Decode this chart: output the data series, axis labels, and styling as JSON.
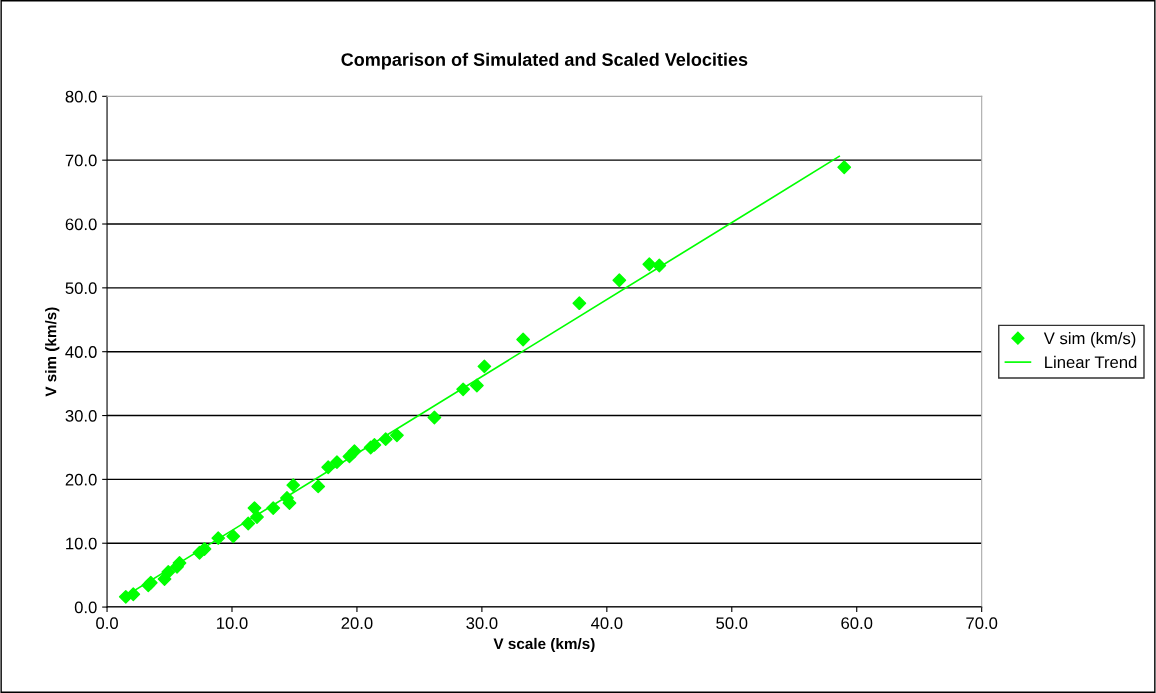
{
  "chart_data": {
    "type": "scatter",
    "title": "Comparison of Simulated and Scaled Velocities",
    "xlabel": "V scale (km/s)",
    "ylabel": "V sim (km/s)",
    "xlim": [
      0,
      70
    ],
    "xticks": [
      {
        "value": 0,
        "label": "0.0"
      },
      {
        "value": 10,
        "label": "10.0"
      },
      {
        "value": 20,
        "label": "20.0"
      },
      {
        "value": 30,
        "label": "30.0"
      },
      {
        "value": 40,
        "label": "40.0"
      },
      {
        "value": 50,
        "label": "50.0"
      },
      {
        "value": 60,
        "label": "60.0"
      },
      {
        "value": 70,
        "label": "70.0"
      }
    ],
    "ylim": [
      0,
      80
    ],
    "yticks": [
      {
        "value": 0,
        "label": "0.0"
      },
      {
        "value": 10,
        "label": "10.0"
      },
      {
        "value": 20,
        "label": "20.0"
      },
      {
        "value": 30,
        "label": "30.0"
      },
      {
        "value": 40,
        "label": "40.0"
      },
      {
        "value": 50,
        "label": "50.0"
      },
      {
        "value": 60,
        "label": "60.0"
      },
      {
        "value": 70,
        "label": "70.0"
      },
      {
        "value": 80,
        "label": "80.0"
      }
    ],
    "grid": "y",
    "legend": "right",
    "marker": "diamond",
    "series": [
      {
        "name": "V sim (km/s)",
        "color": "#00ff00",
        "x": [
          1.5,
          2.1,
          3.3,
          3.5,
          4.6,
          4.9,
          5.6,
          5.8,
          7.4,
          7.8,
          8.9,
          10.1,
          11.3,
          11.8,
          12.0,
          13.3,
          14.4,
          14.6,
          14.9,
          16.9,
          17.7,
          18.4,
          19.4,
          19.8,
          21.1,
          21.4,
          22.3,
          23.2,
          26.2,
          28.5,
          29.6,
          30.2,
          33.3,
          37.8,
          41.0,
          43.4,
          44.2,
          59.0
        ],
        "values": [
          1.6,
          2.0,
          3.4,
          3.8,
          4.4,
          5.5,
          6.3,
          6.9,
          8.5,
          9.1,
          10.8,
          11.1,
          13.1,
          15.5,
          14.1,
          15.5,
          17.1,
          16.3,
          19.1,
          18.9,
          21.9,
          22.7,
          23.6,
          24.4,
          25.0,
          25.4,
          26.3,
          26.9,
          29.7,
          34.1,
          34.7,
          37.7,
          41.9,
          47.6,
          51.2,
          53.7,
          53.5,
          68.9
        ]
      },
      {
        "name": "Linear Trend",
        "type": "line",
        "color": "#00ff00",
        "line_style": "solid",
        "marker": "none",
        "x": [
          1.2,
          58.6
        ],
        "values": [
          1.4,
          70.6
        ]
      }
    ]
  }
}
